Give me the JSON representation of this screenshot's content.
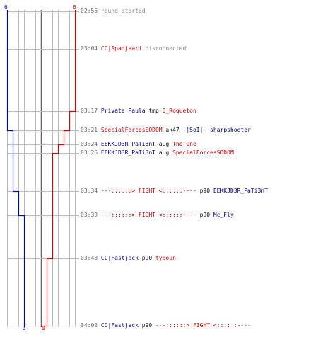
{
  "colors": {
    "blue_team": "#0000cc",
    "red_team": "#dd0000",
    "grid": "#bbbbbb",
    "center": "#666666",
    "time": "#666666",
    "info": "#888888"
  },
  "round": {
    "start_counts": {
      "blue": "6",
      "red": "6"
    },
    "end_counts": {
      "blue": "3",
      "red": "0"
    }
  },
  "events": [
    {
      "time": "02:56",
      "parts": [
        {
          "t": "round started",
          "c": "info"
        }
      ]
    },
    {
      "time": "03:04",
      "parts": [
        {
          "t": "CC|Spadjaari",
          "c": "red"
        },
        {
          "t": " disconnected",
          "c": "info"
        }
      ]
    },
    {
      "time": "03:17",
      "parts": [
        {
          "t": "Private Paula",
          "c": "blue"
        },
        {
          "t": " tmp ",
          "c": "dark"
        },
        {
          "t": "Q_Roqueton",
          "c": "red"
        }
      ]
    },
    {
      "time": "03:21",
      "parts": [
        {
          "t": "SpecialForcesSODOM",
          "c": "red"
        },
        {
          "t": " ak47 ",
          "c": "dark"
        },
        {
          "t": "-|SoI|- sharpshooter",
          "c": "blue"
        }
      ]
    },
    {
      "time": "03:24",
      "parts": [
        {
          "t": "EEKKJD3R_PaTi3nT",
          "c": "blue"
        },
        {
          "t": " aug ",
          "c": "dark"
        },
        {
          "t": "The One",
          "c": "red"
        }
      ]
    },
    {
      "time": "03:26",
      "parts": [
        {
          "t": "EEKKJD3R_PaTi3nT",
          "c": "blue"
        },
        {
          "t": " aug ",
          "c": "dark"
        },
        {
          "t": "SpecialForcesSODOM",
          "c": "red"
        }
      ]
    },
    {
      "time": "03:34",
      "parts": [
        {
          "t": "---::::::> FIGHT <::::::----",
          "c": "red"
        },
        {
          "t": " p90 ",
          "c": "dark"
        },
        {
          "t": "EEKKJD3R_PaTi3nT",
          "c": "blue"
        }
      ]
    },
    {
      "time": "03:39",
      "parts": [
        {
          "t": "---::::::> FIGHT <::::::----",
          "c": "red"
        },
        {
          "t": " p90 ",
          "c": "dark"
        },
        {
          "t": "Mc_Fly",
          "c": "blue"
        }
      ]
    },
    {
      "time": "03:48",
      "parts": [
        {
          "t": "CC|Fastjack",
          "c": "blue"
        },
        {
          "t": " p90 ",
          "c": "dark"
        },
        {
          "t": "tydoun",
          "c": "red"
        }
      ]
    },
    {
      "time": "04:02",
      "parts": [
        {
          "t": "CC|Fastjack",
          "c": "blue"
        },
        {
          "t": " p90 ",
          "c": "dark"
        },
        {
          "t": "---::::::> FIGHT <::::::----",
          "c": "red"
        }
      ]
    }
  ]
}
